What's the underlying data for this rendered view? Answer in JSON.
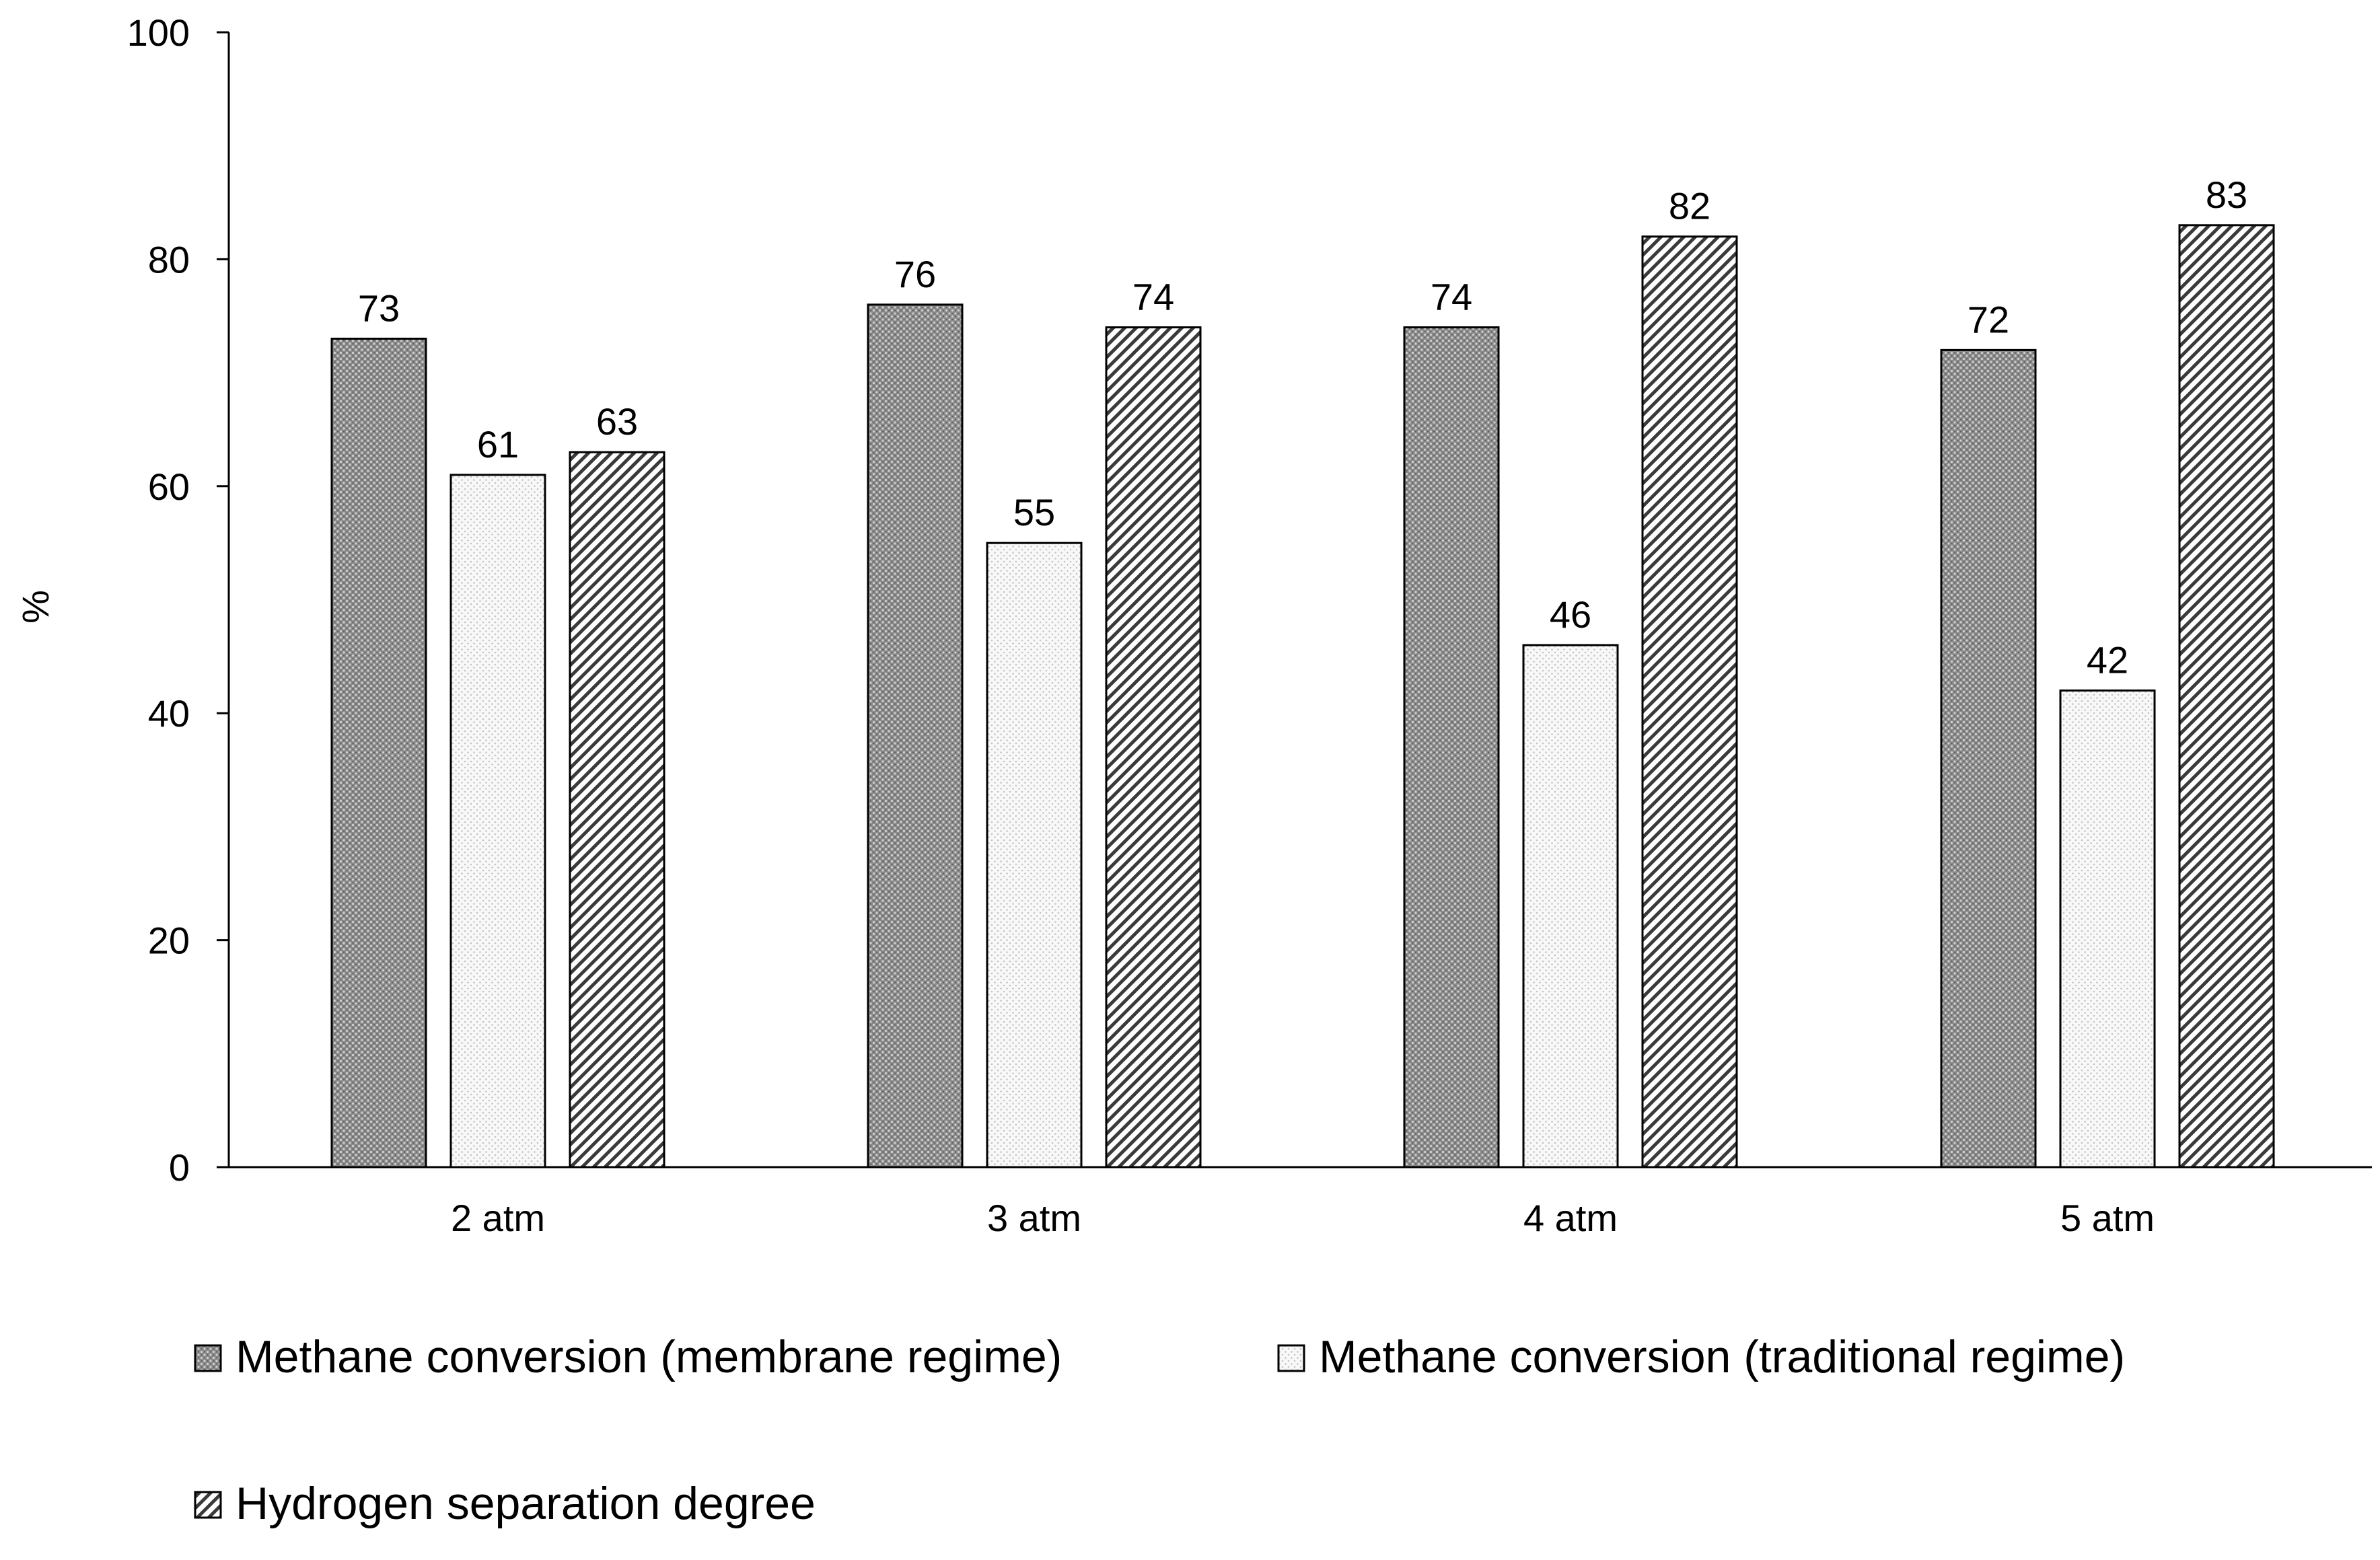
{
  "chart_data": {
    "type": "bar",
    "title": "",
    "xlabel": "",
    "ylabel": "%",
    "ylim": [
      0,
      100
    ],
    "yticks": [
      0,
      20,
      40,
      60,
      80,
      100
    ],
    "categories": [
      "2 atm",
      "3 atm",
      "4 atm",
      "5 atm"
    ],
    "series": [
      {
        "name": "Methane conversion (membrane regime)",
        "pattern": "dark-dots",
        "values": [
          73,
          76,
          74,
          72
        ],
        "value_labels": [
          "73",
          "76",
          "74",
          "72"
        ]
      },
      {
        "name": "Methane conversion (traditional regime)",
        "pattern": "light-dots",
        "values": [
          61,
          55,
          46,
          42
        ],
        "value_labels": [
          "61",
          "55",
          "46",
          "42"
        ]
      },
      {
        "name": "Hydrogen separation degree",
        "pattern": "diagonal-hatch",
        "values": [
          63,
          74,
          82,
          83
        ],
        "value_labels": [
          "63",
          "74",
          "82",
          "83"
        ]
      }
    ],
    "grid": false,
    "legend_position": "bottom",
    "colors": {
      "axis": "#000000",
      "bar_outline": "#000000",
      "background": "#ffffff"
    }
  }
}
